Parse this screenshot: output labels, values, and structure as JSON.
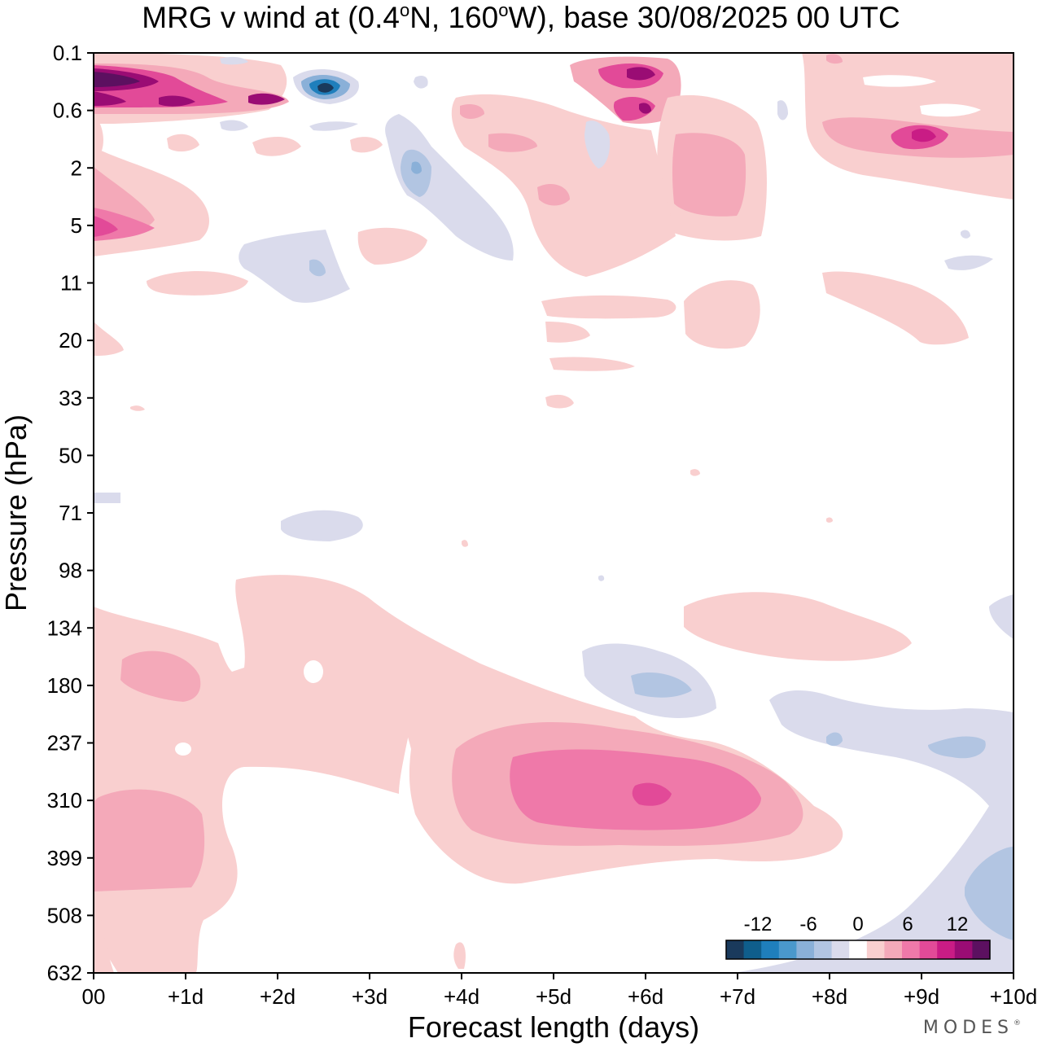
{
  "title": {
    "prefix": "MRG v wind at (0.4",
    "deg1": "o",
    "mid": "N, 160",
    "deg2": "o",
    "suffix": "W),  base 30/08/2025  00 UTC"
  },
  "brand": {
    "name": "MODES",
    "mark": "®"
  },
  "chart_data": {
    "type": "heatmap",
    "subtype": "filled-contour",
    "title": "MRG v wind at (0.4°N, 160°W),  base 30/08/2025  00 UTC",
    "xlabel": "Forecast length (days)",
    "ylabel": "Pressure (hPa)",
    "x_ticks": [
      "00",
      "+1d",
      "+2d",
      "+3d",
      "+4d",
      "+5d",
      "+6d",
      "+7d",
      "+8d",
      "+9d",
      "+10d"
    ],
    "xlim": [
      0,
      10
    ],
    "y_ticks": [
      "0.1",
      "0.6",
      "2",
      "5",
      "11",
      "20",
      "33",
      "50",
      "71",
      "98",
      "134",
      "180",
      "237",
      "310",
      "399",
      "508",
      "632"
    ],
    "y_scale": "log",
    "ylim": [
      632,
      0.1
    ],
    "colorbar": {
      "labels": [
        "-12",
        "-6",
        "0",
        "6",
        "12"
      ],
      "levels": [
        -16,
        -14,
        -12,
        -10,
        -8,
        -6,
        -4,
        -2,
        2,
        4,
        6,
        8,
        10,
        12,
        14,
        16
      ],
      "colors": [
        "#1a3a5c",
        "#0f5e8c",
        "#1f7fbc",
        "#4a98cc",
        "#8ab0d8",
        "#b2c5e2",
        "#dadbec",
        "#ffffff",
        "#f9cfcf",
        "#f4a9b9",
        "#ef79a9",
        "#e24a98",
        "#c91c85",
        "#9a0c74",
        "#5c1060"
      ]
    },
    "features": [
      {
        "x": 1.8,
        "p": 250,
        "v": 3,
        "note": "broad positive region days 0-4 lower troposphere"
      },
      {
        "x": 6.0,
        "p": 300,
        "v": 11,
        "note": "positive maximum near +6d ~300 hPa"
      },
      {
        "x": 6.0,
        "p": 180,
        "v": -4,
        "note": "negative near +6d ~180 hPa"
      },
      {
        "x": 9.8,
        "p": 450,
        "v": -5,
        "note": "negative region days 8-10 lower levels"
      },
      {
        "x": 0.3,
        "p": 0.3,
        "v": 15,
        "note": "strong positive upper-level near 00-1d"
      },
      {
        "x": 2.5,
        "p": 0.3,
        "v": -15,
        "note": "strong negative near +2.5d 0.3 hPa"
      },
      {
        "x": 6.0,
        "p": 0.2,
        "v": 13,
        "note": "positive near +6d top levels"
      },
      {
        "x": 9.0,
        "p": 1.0,
        "v": 12,
        "note": "positive near +9d ~1 hPa"
      }
    ]
  }
}
